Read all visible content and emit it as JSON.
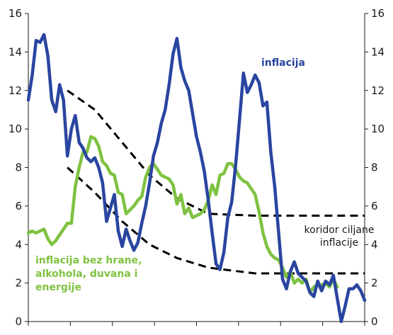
{
  "chart_data": {
    "type": "line",
    "ylim": [
      0,
      16
    ],
    "y_ticks": [
      "0",
      "2",
      "4",
      "6",
      "8",
      "10",
      "12",
      "14",
      "16"
    ],
    "x_ticks_count": 8,
    "grid": false,
    "annotations": {
      "series_blue": "inflacija",
      "series_green": [
        "inflacija bez hrane,",
        "alkohola, duvana i",
        "energije"
      ],
      "corridor": [
        "koridor ciljane",
        "inflacije"
      ]
    },
    "colors": {
      "blue": "#2a45a0",
      "green": "#7fc241",
      "corridor": "#000000"
    },
    "series": [
      {
        "key": "blue",
        "values": [
          11.5,
          12.8,
          14.6,
          14.5,
          14.9,
          13.8,
          11.5,
          10.9,
          12.3,
          11.5,
          8.6,
          10.0,
          10.7,
          9.3,
          9.0,
          8.5,
          8.3,
          8.5,
          8.0,
          7.2,
          5.2,
          5.9,
          6.6,
          4.7,
          3.9,
          4.8,
          4.2,
          3.7,
          4.1,
          5.1,
          6.0,
          7.2,
          8.6,
          9.3,
          10.3,
          11.0,
          12.3,
          13.9,
          14.7,
          13.2,
          12.5,
          12.0,
          10.8,
          9.6,
          8.8,
          7.8,
          6.3,
          4.6,
          3.0,
          2.7,
          3.6,
          5.4,
          6.2,
          8.1,
          10.5,
          12.9,
          11.9,
          12.3,
          12.8,
          12.4,
          11.2,
          11.4,
          8.8,
          7.0,
          4.6,
          2.2,
          1.7,
          2.6,
          3.1,
          2.5,
          2.3,
          2.1,
          1.5,
          1.3,
          2.1,
          1.6,
          2.1,
          1.9,
          2.4,
          1.2,
          0.0,
          0.8,
          1.7,
          1.7,
          1.9,
          1.6,
          1.1
        ],
        "x_start": 0.0,
        "x_step": 1.0
      },
      {
        "key": "green",
        "values": [
          4.6,
          4.7,
          4.6,
          4.7,
          4.8,
          4.3,
          4.0,
          4.2,
          4.5,
          4.8,
          5.1,
          5.1,
          7.0,
          8.0,
          8.8,
          8.8,
          9.6,
          9.5,
          9.1,
          8.3,
          8.1,
          7.7,
          7.6,
          6.7,
          6.6,
          5.6,
          5.8,
          6.0,
          6.3,
          6.5,
          7.5,
          8.0,
          8.2,
          7.9,
          7.6,
          7.5,
          7.4,
          7.1,
          6.1,
          6.6,
          5.6,
          5.9,
          5.4,
          5.5,
          5.6,
          5.8,
          6.3,
          7.1,
          6.6,
          7.6,
          7.7,
          8.2,
          8.2,
          7.9,
          7.5,
          7.3,
          7.2,
          6.9,
          6.6,
          5.7,
          4.6,
          3.9,
          3.5,
          3.3,
          3.2,
          2.8,
          2.3,
          2.6,
          2.0,
          2.2,
          2.0,
          2.2,
          1.5,
          1.8,
          1.9,
          1.9,
          2.0,
          1.8,
          2.2,
          1.8
        ],
        "x_start": 0.0,
        "x_step": 1.0
      },
      {
        "key": "corridor_upper",
        "points": [
          [
            10,
            12.0
          ],
          [
            17,
            11.0
          ],
          [
            24,
            9.3
          ],
          [
            31,
            7.6
          ],
          [
            38,
            6.4
          ],
          [
            46,
            5.6
          ],
          [
            58,
            5.5
          ],
          [
            86,
            5.5
          ]
        ]
      },
      {
        "key": "corridor_lower",
        "points": [
          [
            10,
            8.0
          ],
          [
            17,
            6.7
          ],
          [
            24,
            5.2
          ],
          [
            31,
            4.0
          ],
          [
            38,
            3.3
          ],
          [
            46,
            2.8
          ],
          [
            58,
            2.5
          ],
          [
            86,
            2.5
          ]
        ]
      }
    ],
    "x_domain": [
      0,
      86
    ]
  }
}
